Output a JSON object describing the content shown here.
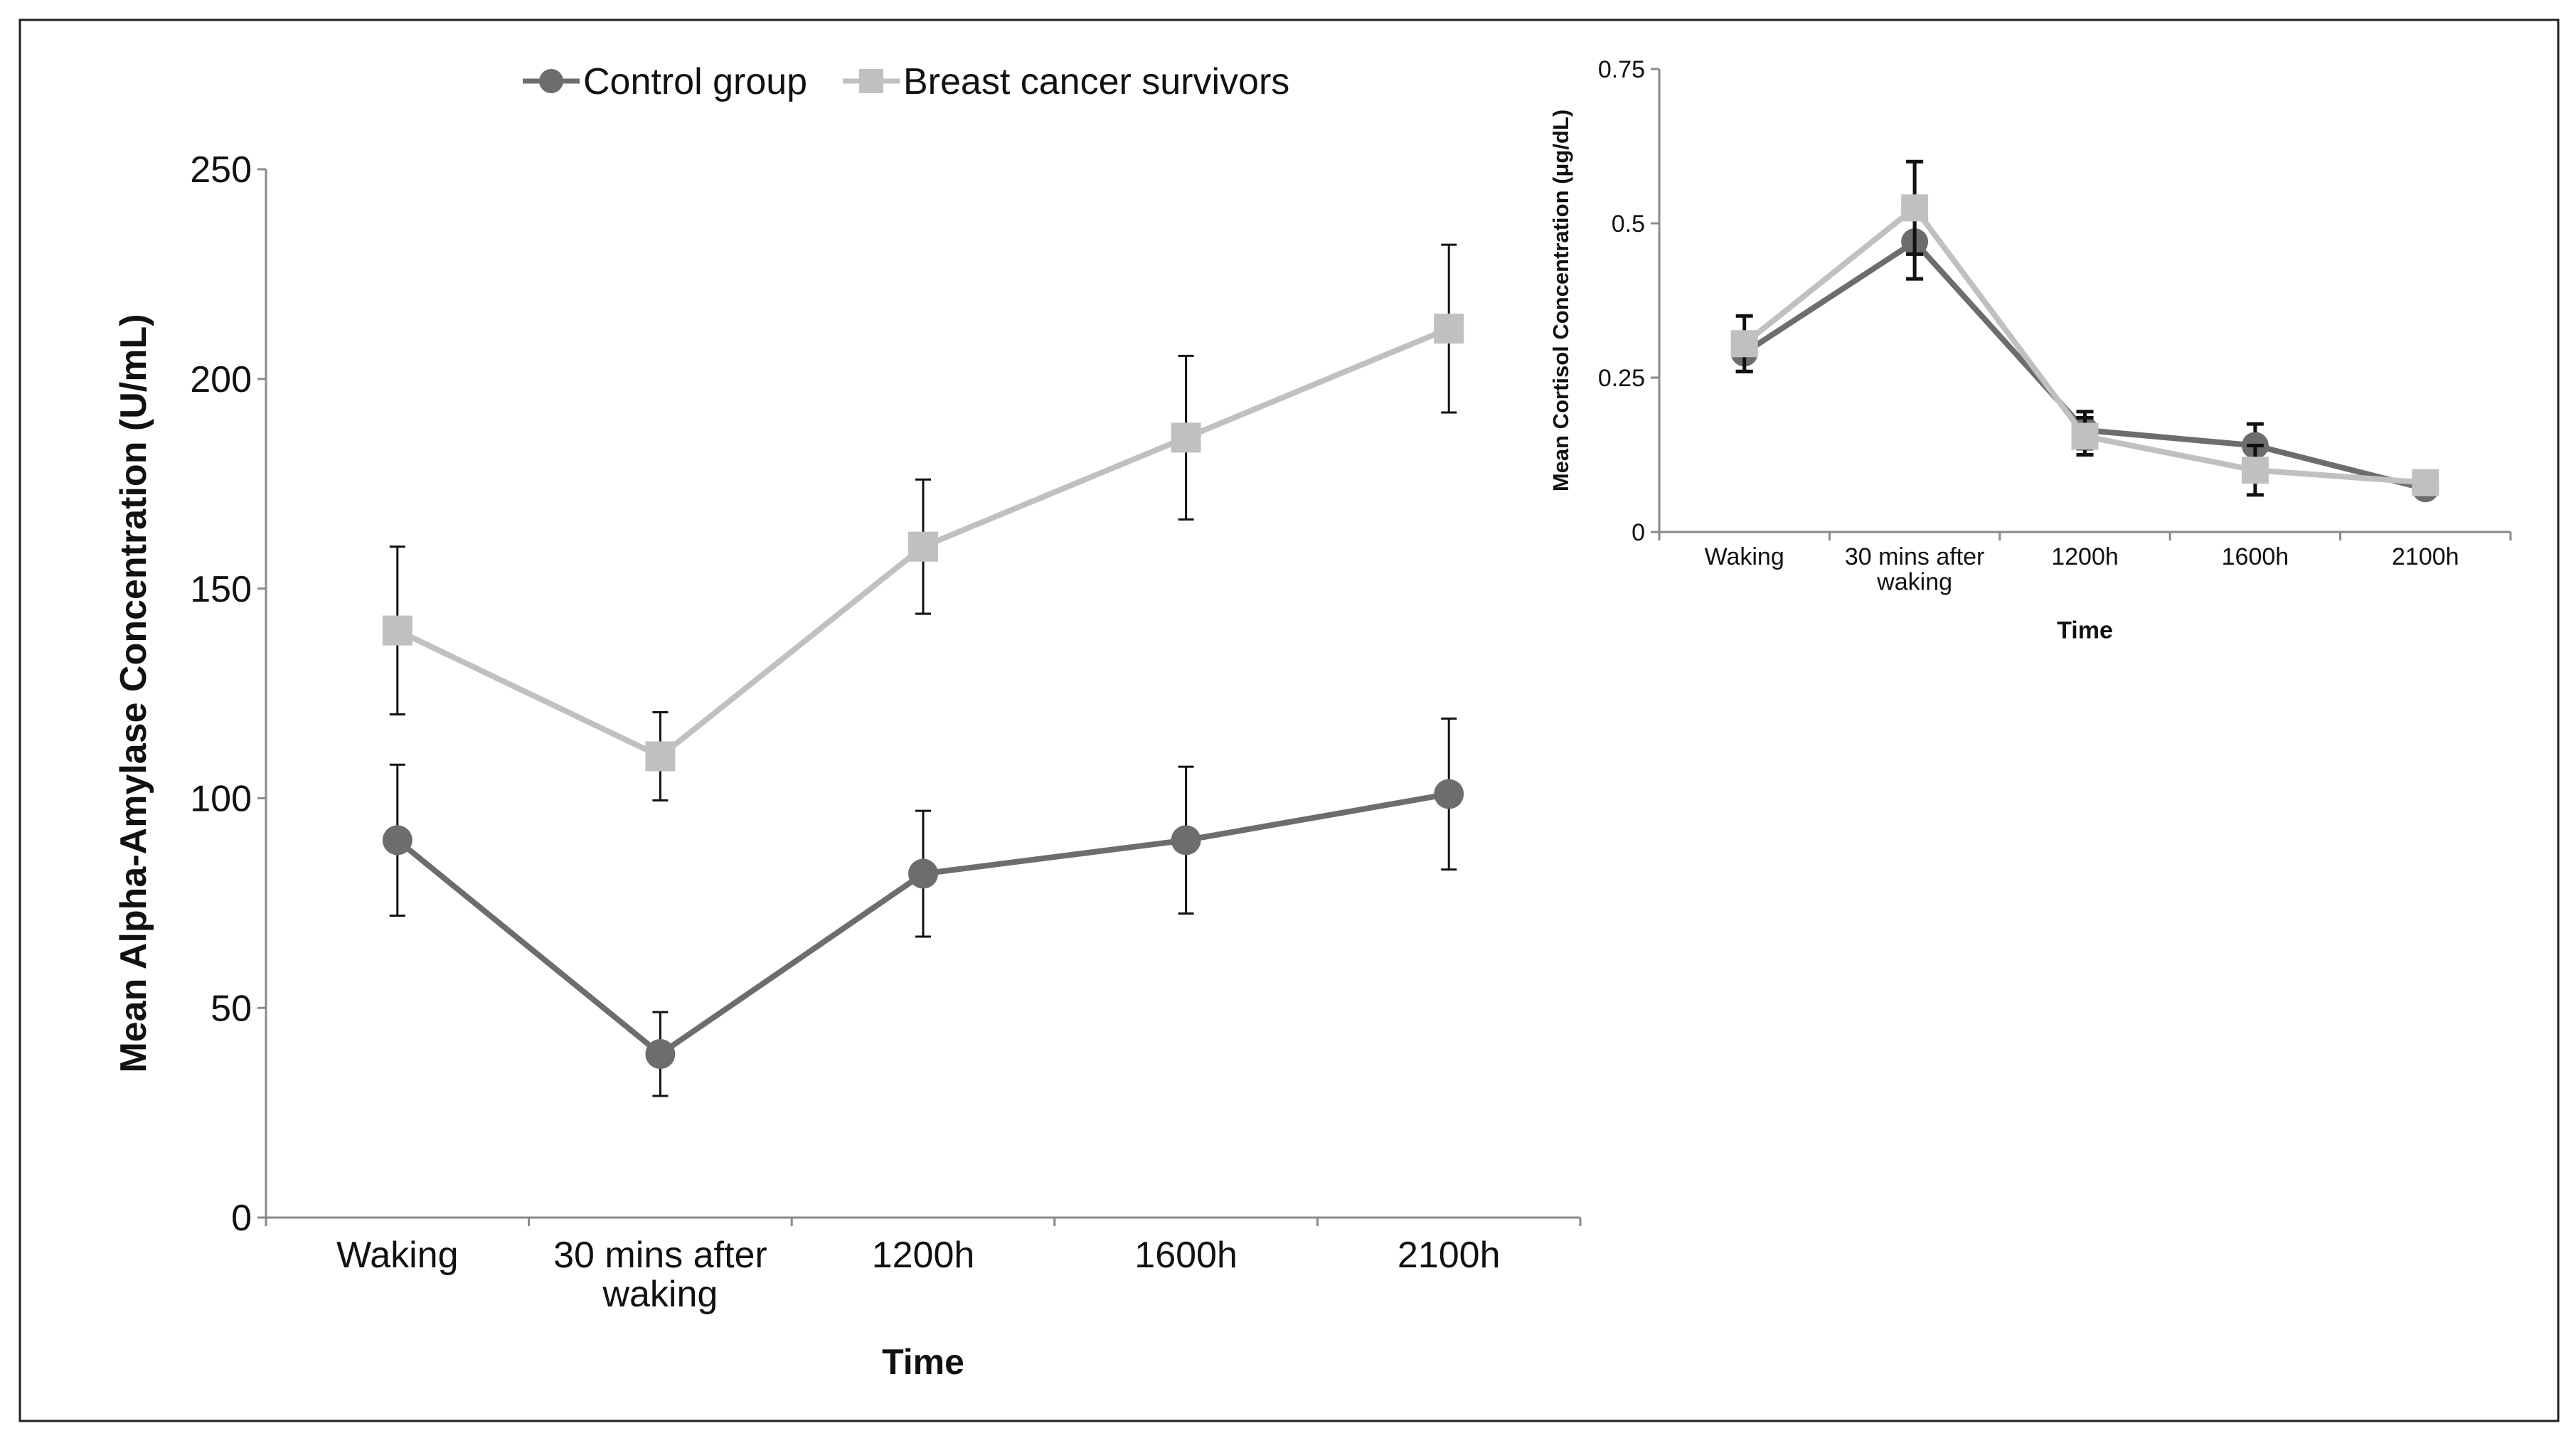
{
  "legend": {
    "control_label": "Control group",
    "bcs_label": "Breast cancer survivors"
  },
  "colors": {
    "control": "#6d6d6d",
    "bcs": "#c0c0c0",
    "axis": "#8a8a8a",
    "error": "#111111"
  },
  "chart_data": [
    {
      "type": "line",
      "title": "",
      "xlabel": "Time",
      "ylabel": "Mean Alpha-Amylase Concentration (U/mL)",
      "categories": [
        "Waking",
        "30 mins after waking",
        "1200h",
        "1600h",
        "2100h"
      ],
      "category_lines": [
        [
          "Waking"
        ],
        [
          "30 mins after",
          "waking"
        ],
        [
          "1200h"
        ],
        [
          "1600h"
        ],
        [
          "2100h"
        ]
      ],
      "ylim": [
        0,
        250
      ],
      "yticks": [
        0,
        50,
        100,
        150,
        200,
        250
      ],
      "ytick_labels": [
        "0",
        "50",
        "100",
        "150",
        "200",
        "250"
      ],
      "legend_position": "top",
      "series": [
        {
          "name": "Control group",
          "key": "control",
          "marker": "circle",
          "values": [
            90,
            39,
            82,
            90,
            101
          ],
          "errors": [
            18,
            10,
            15,
            17.5,
            18
          ]
        },
        {
          "name": "Breast cancer survivors",
          "key": "bcs",
          "marker": "square",
          "values": [
            140,
            110,
            160,
            186,
            212
          ],
          "errors": [
            20,
            10.5,
            16,
            19.5,
            20
          ]
        }
      ]
    },
    {
      "type": "line",
      "title": "",
      "xlabel": "Time",
      "ylabel": "Mean Cortisol Concentration  (μg/dL)",
      "categories": [
        "Waking",
        "30 mins after waking",
        "1200h",
        "1600h",
        "2100h"
      ],
      "category_lines": [
        [
          "Waking"
        ],
        [
          "30 mins after",
          "waking"
        ],
        [
          "1200h"
        ],
        [
          "1600h"
        ],
        [
          "2100h"
        ]
      ],
      "ylim": [
        0,
        0.75
      ],
      "yticks": [
        0,
        0.25,
        0.5,
        0.75
      ],
      "ytick_labels": [
        "0",
        "0.25",
        "0.5",
        "0.75"
      ],
      "series": [
        {
          "name": "Control group",
          "key": "control",
          "marker": "circle",
          "values": [
            0.29,
            0.47,
            0.165,
            0.14,
            0.07
          ],
          "errors": [
            0.03,
            0.06,
            0.03,
            0.035,
            0.01
          ]
        },
        {
          "name": "Breast cancer survivors",
          "key": "bcs",
          "marker": "square",
          "values": [
            0.305,
            0.525,
            0.155,
            0.1,
            0.08
          ],
          "errors": [
            0.045,
            0.075,
            0.03,
            0.04,
            0.01
          ]
        }
      ]
    }
  ]
}
